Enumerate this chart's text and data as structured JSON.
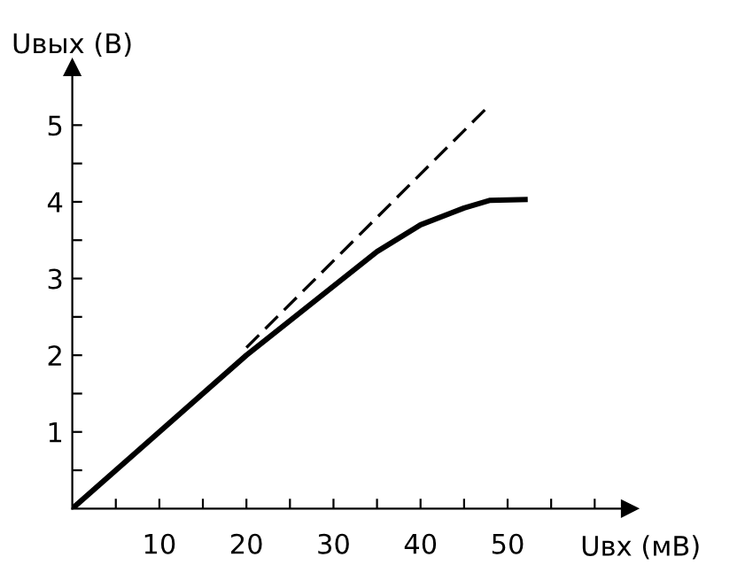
{
  "chart_data": {
    "type": "line",
    "xlabel": "Uвх (мВ)",
    "ylabel": "Uвых (В)",
    "xlim": [
      0,
      64
    ],
    "ylim": [
      0,
      5.75
    ],
    "xticks": [
      {
        "value": 5,
        "label": null
      },
      10,
      {
        "value": 15,
        "label": null
      },
      20,
      {
        "value": 25,
        "label": null
      },
      30,
      {
        "value": 35,
        "label": null
      },
      40,
      {
        "value": 45,
        "label": null
      },
      50,
      {
        "value": 55,
        "label": null
      },
      {
        "value": 60,
        "label": null
      }
    ],
    "yticks": [
      {
        "value": 0.5,
        "label": null
      },
      1,
      {
        "value": 1.5,
        "label": null
      },
      2,
      {
        "value": 2.5,
        "label": null
      },
      3,
      {
        "value": 3.5,
        "label": null
      },
      4,
      {
        "value": 4.5,
        "label": null
      },
      5
    ],
    "series": [
      {
        "color": "#000000",
        "line_style": "solid",
        "x": [
          0,
          20,
          25,
          30,
          35,
          40,
          45,
          48,
          52
        ],
        "values": [
          0,
          2.0,
          2.45,
          2.9,
          3.35,
          3.7,
          3.92,
          4.02,
          4.03
        ]
      },
      {
        "color": "#000000",
        "line_style": "dashed",
        "x": [
          20,
          47.4
        ],
        "values": [
          2.1,
          5.2
        ]
      }
    ],
    "grid": false
  }
}
